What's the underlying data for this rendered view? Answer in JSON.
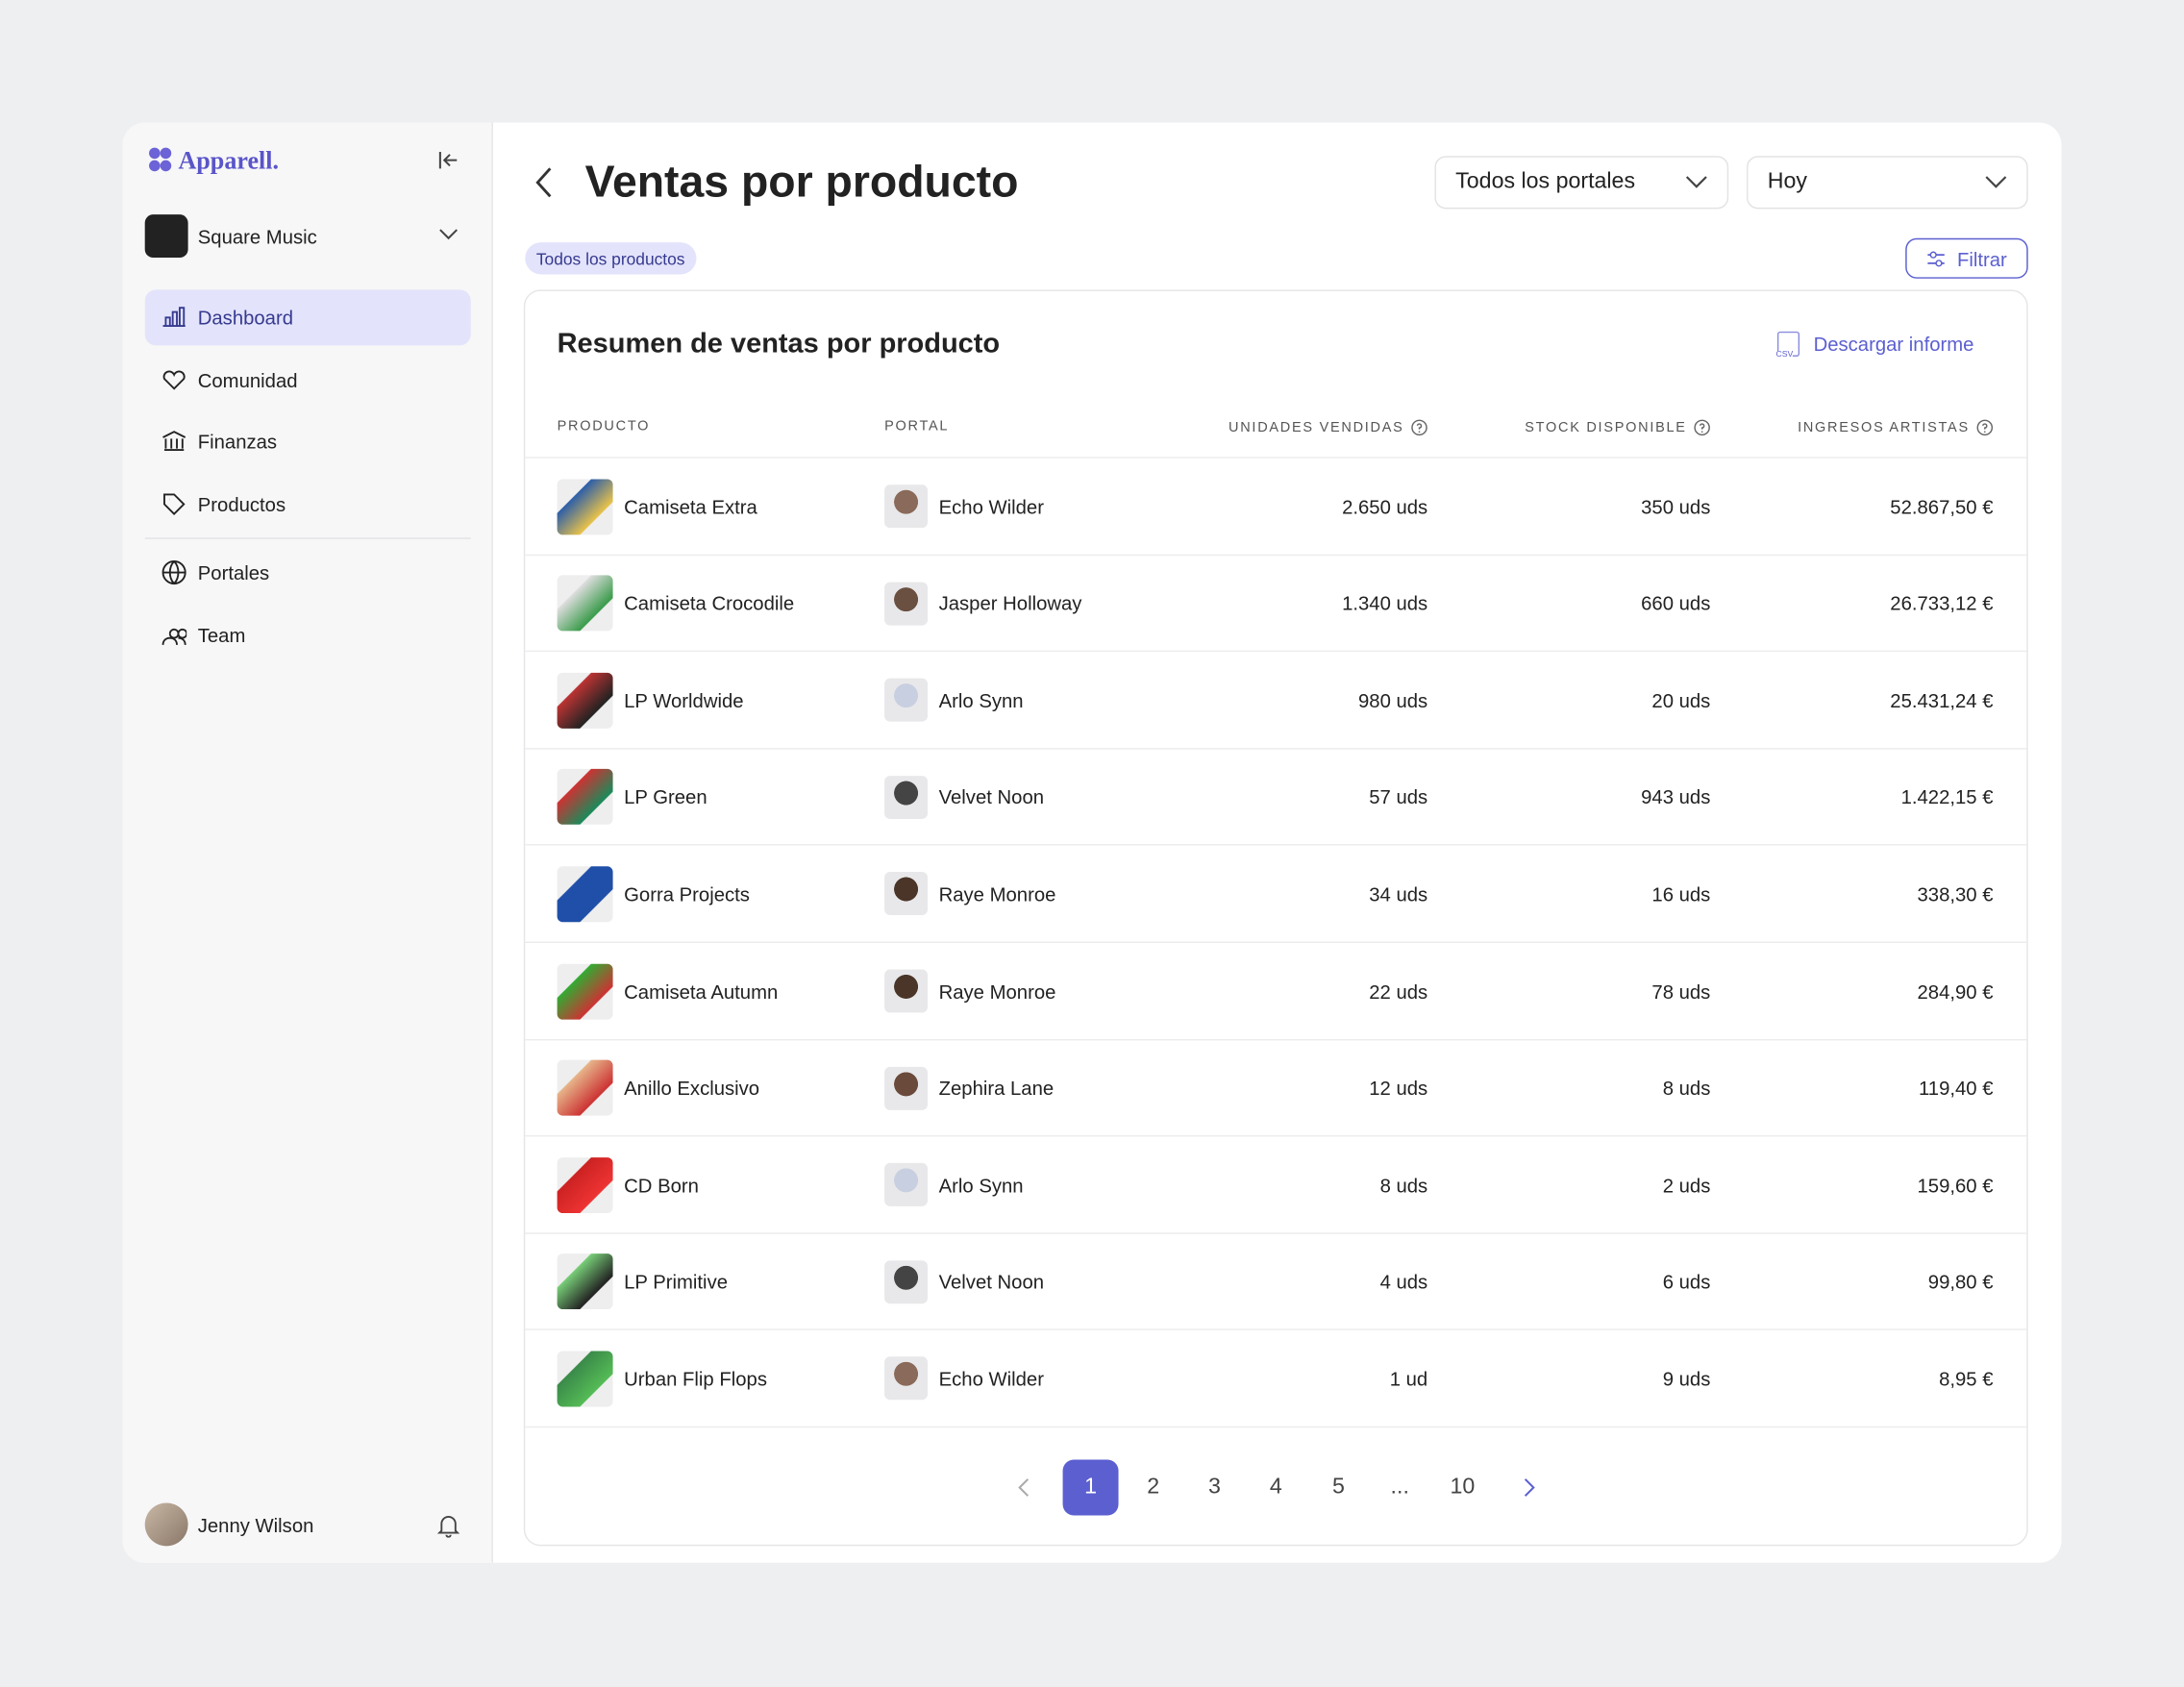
{
  "sidebar": {
    "brand": "Apparell.",
    "workspace": "Square Music",
    "nav": [
      "Dashboard",
      "Comunidad",
      "Finanzas",
      "Productos",
      "Portales",
      "Team"
    ],
    "user": "Jenny Wilson"
  },
  "header": {
    "title": "Ventas por producto",
    "portal_select": "Todos los portales",
    "period_select": "Hoy",
    "chip": "Todos los productos",
    "filter_button": "Filtrar"
  },
  "card": {
    "title": "Resumen de ventas por producto",
    "download": "Descargar informe",
    "download_icon": "CSV"
  },
  "table": {
    "columns": [
      "PRODUCTO",
      "PORTAL",
      "UNIDADES VENDIDAS",
      "STOCK DISPONIBLE",
      "INGRESOS ARTISTAS"
    ],
    "rows": [
      [
        "Camiseta Extra",
        "Echo Wilder",
        "2.650 uds",
        "350 uds",
        "52.867,50 €"
      ],
      [
        "Camiseta Crocodile",
        "Jasper Holloway",
        "1.340 uds",
        "660 uds",
        "26.733,12 €"
      ],
      [
        "LP Worldwide",
        "Arlo Synn",
        "980 uds",
        "20 uds",
        "25.431,24 €"
      ],
      [
        "LP Green",
        "Velvet Noon",
        "57 uds",
        "943 uds",
        "1.422,15 €"
      ],
      [
        "Gorra Projects",
        "Raye Monroe",
        "34 uds",
        "16 uds",
        "338,30 €"
      ],
      [
        "Camiseta Autumn",
        "Raye Monroe",
        "22 uds",
        "78 uds",
        "284,90 €"
      ],
      [
        "Anillo Exclusivo",
        "Zephira Lane",
        "12 uds",
        "8 uds",
        "119,40 €"
      ],
      [
        "CD Born",
        "Arlo Synn",
        "8 uds",
        "2 uds",
        "159,60 €"
      ],
      [
        "LP Primitive",
        "Velvet Noon",
        "4 uds",
        "6 uds",
        "99,80 €"
      ],
      [
        "Urban Flip Flops",
        "Echo Wilder",
        "1 ud",
        "9 uds",
        "8,95 €"
      ]
    ]
  },
  "pagination": {
    "pages": [
      "1",
      "2",
      "3",
      "4",
      "5",
      "...",
      "10"
    ],
    "current": "1"
  }
}
